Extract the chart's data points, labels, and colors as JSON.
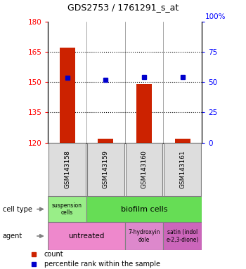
{
  "title": "GDS2753 / 1761291_s_at",
  "samples": [
    "GSM143158",
    "GSM143159",
    "GSM143160",
    "GSM143161"
  ],
  "bar_values": [
    167,
    122,
    149,
    122
  ],
  "bar_base": 120,
  "blue_values": [
    152,
    151,
    152.5,
    152.5
  ],
  "ylim": [
    120,
    180
  ],
  "yticks_left": [
    120,
    135,
    150,
    165,
    180
  ],
  "yticks_right": [
    0,
    25,
    50,
    75,
    100
  ],
  "bar_color": "#cc2200",
  "blue_color": "#0000cc",
  "cell_type_colors": [
    "#99ee88",
    "#66dd55"
  ],
  "agent_colors": [
    "#ee88cc",
    "#dd88cc",
    "#cc66bb"
  ],
  "legend_count_color": "#cc2200",
  "legend_blue_color": "#0000cc",
  "background_color": "#ffffff",
  "plot_bg": "#ffffff",
  "sample_box_color": "#dddddd"
}
